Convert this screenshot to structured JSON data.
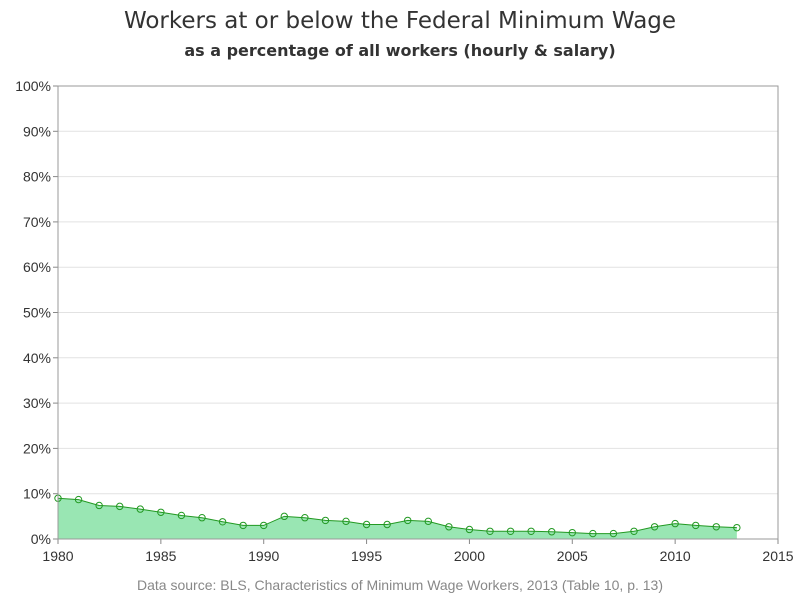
{
  "chart_data": {
    "type": "area",
    "title": "Workers at or below the Federal Minimum Wage",
    "subtitle": "as a percentage of all workers (hourly & salary)",
    "xlabel": "",
    "ylabel": "",
    "xlim": [
      1980,
      2015
    ],
    "ylim": [
      0,
      100
    ],
    "x_ticks": [
      "1980",
      "1985",
      "1990",
      "1995",
      "2000",
      "2005",
      "2010",
      "2015"
    ],
    "y_ticks": [
      "0%",
      "10%",
      "20%",
      "30%",
      "40%",
      "50%",
      "60%",
      "70%",
      "80%",
      "90%",
      "100%"
    ],
    "grid": true,
    "x": [
      1980,
      1981,
      1982,
      1983,
      1984,
      1985,
      1986,
      1987,
      1988,
      1989,
      1990,
      1991,
      1992,
      1993,
      1994,
      1995,
      1996,
      1997,
      1998,
      1999,
      2000,
      2001,
      2002,
      2003,
      2004,
      2005,
      2006,
      2007,
      2008,
      2009,
      2010,
      2011,
      2012,
      2013
    ],
    "values": [
      9.0,
      8.7,
      7.4,
      7.2,
      6.6,
      5.9,
      5.2,
      4.7,
      3.8,
      3.0,
      3.0,
      5.0,
      4.7,
      4.1,
      3.9,
      3.2,
      3.2,
      4.1,
      3.9,
      2.7,
      2.1,
      1.7,
      1.7,
      1.7,
      1.6,
      1.4,
      1.2,
      1.2,
      1.7,
      2.7,
      3.4,
      3.0,
      2.7,
      2.5
    ],
    "fill_color": "#99e6b3",
    "line_color": "#229922",
    "source": "Data source: BLS, Characteristics of Minimum Wage Workers, 2013 (Table 10, p. 13)"
  }
}
